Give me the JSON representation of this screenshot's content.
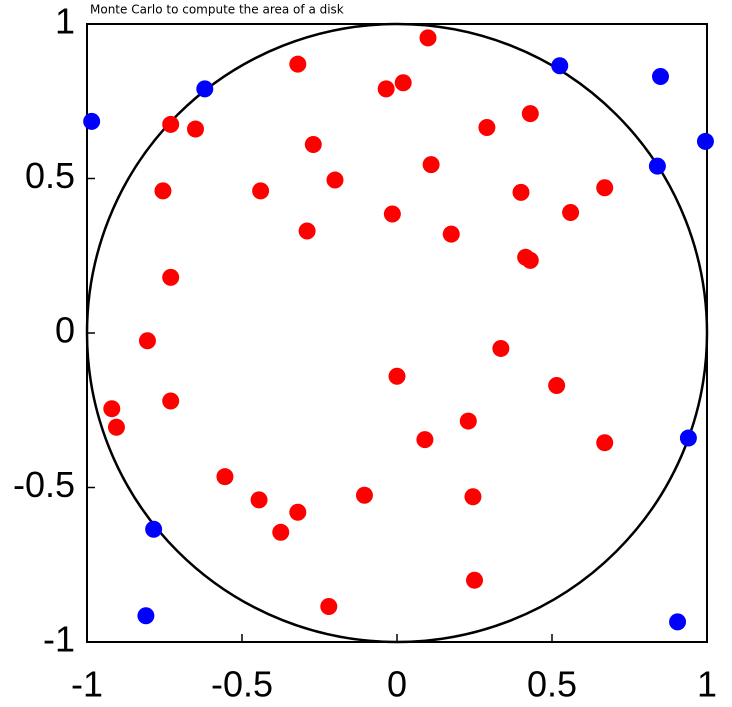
{
  "chart_data": {
    "type": "scatter",
    "title": "Monte Carlo to compute the area of a disk",
    "xlim": [
      -1,
      1
    ],
    "ylim": [
      -1,
      1
    ],
    "xticks": [
      -1,
      -0.5,
      0,
      0.5,
      1
    ],
    "yticks": [
      -1,
      -0.5,
      0,
      0.5,
      1
    ],
    "series": [
      {
        "color": "#ff0000",
        "x": [
          0.1,
          -0.32,
          -0.035,
          0.02,
          -0.73,
          -0.65,
          0.43,
          0.29,
          -0.27,
          -0.2,
          0.11,
          -0.755,
          -0.44,
          -0.015,
          0.4,
          0.67,
          0.56,
          -0.29,
          0.175,
          0.415,
          0.43,
          -0.73,
          -0.805,
          0.335,
          0.0,
          -0.92,
          -0.905,
          -0.73,
          0.515,
          0.09,
          0.23,
          0.67,
          -0.555,
          -0.445,
          -0.32,
          -0.375,
          -0.105,
          0.245,
          0.25,
          -0.22
        ],
        "y": [
          0.955,
          0.87,
          0.79,
          0.81,
          0.675,
          0.66,
          0.71,
          0.665,
          0.61,
          0.495,
          0.545,
          0.46,
          0.46,
          0.385,
          0.455,
          0.47,
          0.39,
          0.33,
          0.32,
          0.245,
          0.235,
          0.18,
          -0.025,
          -0.05,
          -0.14,
          -0.245,
          -0.305,
          -0.22,
          -0.17,
          -0.345,
          -0.285,
          -0.355,
          -0.465,
          -0.54,
          -0.58,
          -0.645,
          -0.525,
          -0.53,
          -0.8,
          -0.885
        ]
      },
      {
        "color": "#0000ff",
        "x": [
          -0.985,
          -0.62,
          0.525,
          0.85,
          0.995,
          0.84,
          0.94,
          -0.785,
          -0.81,
          0.905
        ],
        "y": [
          0.685,
          0.79,
          0.865,
          0.83,
          0.62,
          0.54,
          -0.34,
          -0.635,
          -0.915,
          -0.935
        ]
      }
    ]
  }
}
